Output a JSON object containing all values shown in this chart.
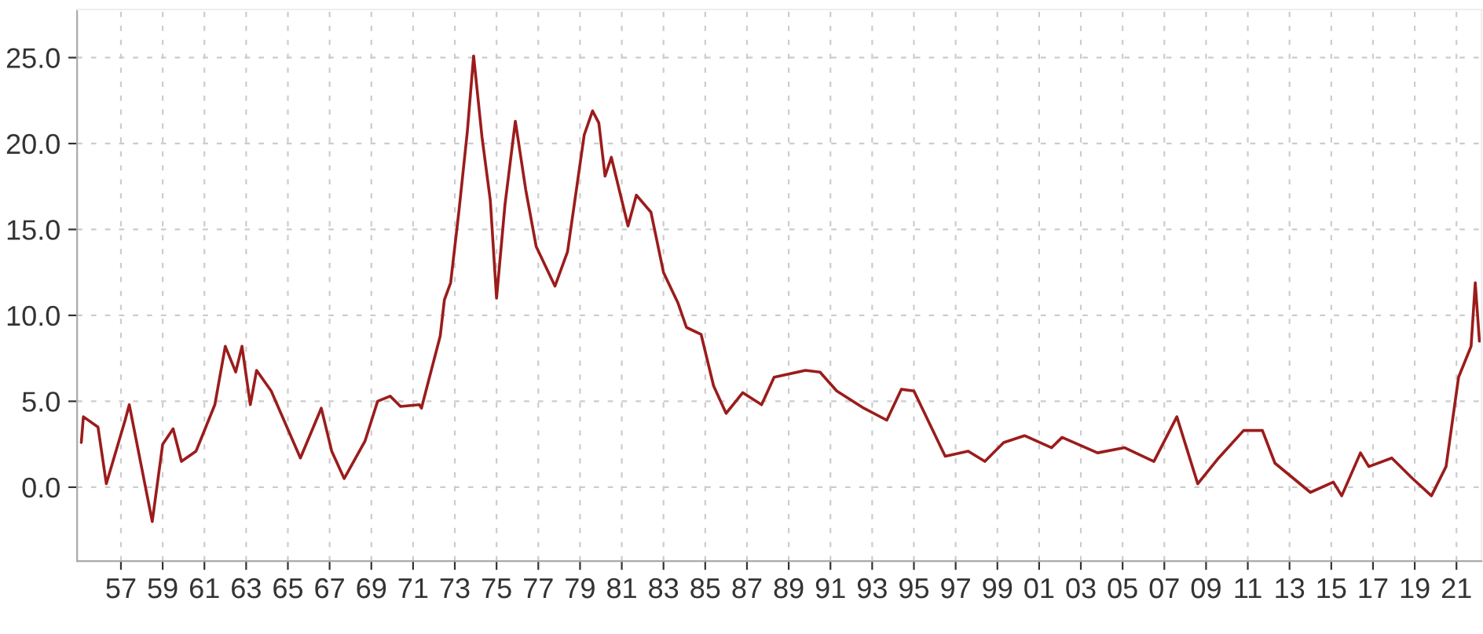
{
  "chart_data": {
    "type": "line",
    "x": [
      1955.1,
      1955.2,
      1955.9,
      1956.3,
      1957.2,
      1957.4,
      1958.5,
      1959.0,
      1959.5,
      1959.9,
      1960.6,
      1961.5,
      1962.0,
      1962.5,
      1962.8,
      1963.2,
      1963.5,
      1964.2,
      1965.6,
      1966.6,
      1967.1,
      1967.7,
      1968.7,
      1969.3,
      1969.9,
      1970.4,
      1971.3,
      1971.4,
      1972.3,
      1972.5,
      1972.8,
      1973.2,
      1973.6,
      1973.9,
      1974.3,
      1974.7,
      1975.0,
      1975.4,
      1975.9,
      1976.4,
      1976.9,
      1977.8,
      1978.4,
      1979.2,
      1979.6,
      1979.9,
      1980.2,
      1980.5,
      1981.3,
      1981.7,
      1982.4,
      1983.0,
      1983.7,
      1984.1,
      1984.8,
      1985.4,
      1986.0,
      1986.8,
      1987.7,
      1988.3,
      1989.8,
      1990.5,
      1991.3,
      1992.6,
      1993.7,
      1994.4,
      1995.0,
      1996.5,
      1997.6,
      1998.4,
      1999.3,
      2000.3,
      2001.6,
      2002.1,
      2003.8,
      2005.1,
      2006.5,
      2007.6,
      2008.6,
      2009.6,
      2010.8,
      2011.7,
      2012.3,
      2014.0,
      2015.1,
      2015.5,
      2016.4,
      2016.8,
      2017.9,
      2018.9,
      2019.8,
      2020.5,
      2021.1,
      2021.7,
      2021.9,
      2022.1
    ],
    "series": [
      {
        "color": "#9b1c1c",
        "values": [
          2.6,
          4.1,
          3.5,
          0.2,
          3.9,
          4.8,
          -2.0,
          2.5,
          3.4,
          1.5,
          2.1,
          4.8,
          8.2,
          6.7,
          8.2,
          4.8,
          6.8,
          5.6,
          1.7,
          4.6,
          2.1,
          0.5,
          2.7,
          5.0,
          5.3,
          4.7,
          4.8,
          4.6,
          8.8,
          10.9,
          11.9,
          16.1,
          20.7,
          25.1,
          20.4,
          16.7,
          11.0,
          16.4,
          21.3,
          17.3,
          14.0,
          11.7,
          13.7,
          20.5,
          21.9,
          21.2,
          18.1,
          19.2,
          15.2,
          17.0,
          16.0,
          12.5,
          10.7,
          9.3,
          8.9,
          5.9,
          4.3,
          5.5,
          4.8,
          6.4,
          6.8,
          6.7,
          5.6,
          4.6,
          3.9,
          5.7,
          5.6,
          1.8,
          2.1,
          1.5,
          2.6,
          3.0,
          2.3,
          2.9,
          2.0,
          2.3,
          1.5,
          4.1,
          0.2,
          1.7,
          3.3,
          3.3,
          1.4,
          -0.3,
          0.3,
          -0.5,
          2.0,
          1.2,
          1.7,
          0.5,
          -0.5,
          1.2,
          6.4,
          8.2,
          11.9,
          8.5
        ]
      }
    ],
    "xlim": [
      1954.9,
      2022.2
    ],
    "xticks": [
      {
        "value": 1957,
        "label": "57"
      },
      {
        "value": 1959,
        "label": "59"
      },
      {
        "value": 1961,
        "label": "61"
      },
      {
        "value": 1963,
        "label": "63"
      },
      {
        "value": 1965,
        "label": "65"
      },
      {
        "value": 1967,
        "label": "67"
      },
      {
        "value": 1969,
        "label": "69"
      },
      {
        "value": 1971,
        "label": "71"
      },
      {
        "value": 1973,
        "label": "73"
      },
      {
        "value": 1975,
        "label": "75"
      },
      {
        "value": 1977,
        "label": "77"
      },
      {
        "value": 1979,
        "label": "79"
      },
      {
        "value": 1981,
        "label": "81"
      },
      {
        "value": 1983,
        "label": "83"
      },
      {
        "value": 1985,
        "label": "85"
      },
      {
        "value": 1987,
        "label": "87"
      },
      {
        "value": 1989,
        "label": "89"
      },
      {
        "value": 1991,
        "label": "91"
      },
      {
        "value": 1993,
        "label": "93"
      },
      {
        "value": 1995,
        "label": "95"
      },
      {
        "value": 1997,
        "label": "97"
      },
      {
        "value": 1999,
        "label": "99"
      },
      {
        "value": 2001,
        "label": "01"
      },
      {
        "value": 2003,
        "label": "03"
      },
      {
        "value": 2005,
        "label": "05"
      },
      {
        "value": 2007,
        "label": "07"
      },
      {
        "value": 2009,
        "label": "09"
      },
      {
        "value": 2011,
        "label": "11"
      },
      {
        "value": 2013,
        "label": "13"
      },
      {
        "value": 2015,
        "label": "15"
      },
      {
        "value": 2017,
        "label": "17"
      },
      {
        "value": 2019,
        "label": "19"
      },
      {
        "value": 2021,
        "label": "21"
      }
    ],
    "ylim": [
      -4.3,
      27.8
    ],
    "yticks": [
      {
        "value": 0,
        "label": "0.0"
      },
      {
        "value": 5,
        "label": "5.0"
      },
      {
        "value": 10,
        "label": "10.0"
      },
      {
        "value": 15,
        "label": "15.0"
      },
      {
        "value": 20,
        "label": "20.0"
      },
      {
        "value": 25,
        "label": "25.0"
      }
    ],
    "grid": true,
    "line_style": "solid",
    "marker": "none"
  }
}
